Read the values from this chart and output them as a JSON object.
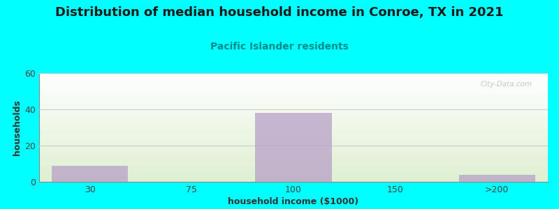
{
  "title": "Distribution of median household income in Conroe, TX in 2021",
  "subtitle": "Pacific Islander residents",
  "xlabel": "household income ($1000)",
  "ylabel": "households",
  "background_color": "#00ffff",
  "bar_color": "#b8a0c8",
  "categories": [
    "30",
    "75",
    "100",
    "150",
    ">200"
  ],
  "values": [
    9,
    0,
    38,
    0,
    4
  ],
  "ylim": [
    0,
    60
  ],
  "yticks": [
    0,
    20,
    40,
    60
  ],
  "title_fontsize": 13,
  "subtitle_fontsize": 10,
  "subtitle_color": "#008b8b",
  "axis_label_fontsize": 9,
  "tick_fontsize": 9,
  "watermark": "City-Data.com",
  "bar_alpha": 0.75,
  "grid_color": "#cccccc"
}
